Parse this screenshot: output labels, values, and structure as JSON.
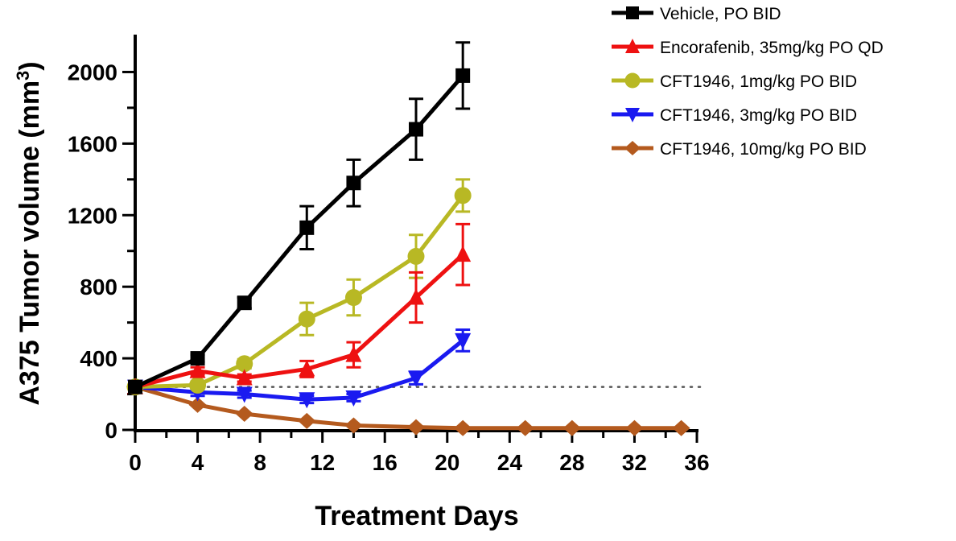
{
  "chart_data": {
    "type": "line",
    "title": "",
    "xlabel": "Treatment Days",
    "ylabel_main": "A375 Tumor volume (mm",
    "ylabel_sup": "3",
    "ylabel_close": ")",
    "xlim": [
      0,
      36
    ],
    "ylim": [
      0,
      2200
    ],
    "xticks": [
      0,
      4,
      8,
      12,
      16,
      20,
      24,
      28,
      32,
      36
    ],
    "yticks": [
      0,
      400,
      800,
      1200,
      1600,
      2000
    ],
    "grid": false,
    "legend_position": "top-right",
    "reference_line": {
      "y": 240,
      "style": "dotted",
      "color": "#555555"
    },
    "series": [
      {
        "name": "Vehicle, PO BID",
        "color": "#000000",
        "marker": "square",
        "x": [
          0,
          4,
          7,
          11,
          14,
          18,
          21
        ],
        "y": [
          240,
          400,
          710,
          1130,
          1380,
          1680,
          1980
        ],
        "err": [
          20,
          20,
          30,
          120,
          130,
          170,
          185
        ]
      },
      {
        "name": "Encorafenib, 35mg/kg PO QD",
        "color": "#ee1111",
        "marker": "triangle-up",
        "x": [
          0,
          4,
          7,
          11,
          14,
          18,
          21
        ],
        "y": [
          240,
          330,
          290,
          340,
          420,
          740,
          980
        ],
        "err": [
          20,
          20,
          20,
          45,
          70,
          140,
          170
        ]
      },
      {
        "name": "CFT1946, 1mg/kg PO BID",
        "color": "#b8b824",
        "marker": "circle",
        "x": [
          0,
          4,
          7,
          11,
          14,
          18,
          21
        ],
        "y": [
          240,
          250,
          370,
          620,
          740,
          970,
          1310
        ],
        "err": [
          20,
          20,
          25,
          90,
          100,
          120,
          90
        ]
      },
      {
        "name": "CFT1946, 3mg/kg PO BID",
        "color": "#1a1af0",
        "marker": "triangle-down",
        "x": [
          0,
          4,
          7,
          11,
          14,
          18,
          21
        ],
        "y": [
          240,
          210,
          200,
          170,
          180,
          290,
          500
        ],
        "err": [
          20,
          20,
          20,
          20,
          20,
          35,
          60
        ]
      },
      {
        "name": "CFT1946, 10mg/kg PO BID",
        "color": "#b45a1e",
        "marker": "diamond",
        "x": [
          0,
          4,
          7,
          11,
          14,
          18,
          21,
          25,
          28,
          32,
          35
        ],
        "y": [
          240,
          140,
          90,
          50,
          25,
          15,
          10,
          10,
          10,
          10,
          10
        ],
        "err": [
          0,
          0,
          0,
          0,
          0,
          0,
          0,
          0,
          0,
          0,
          0
        ]
      }
    ]
  }
}
